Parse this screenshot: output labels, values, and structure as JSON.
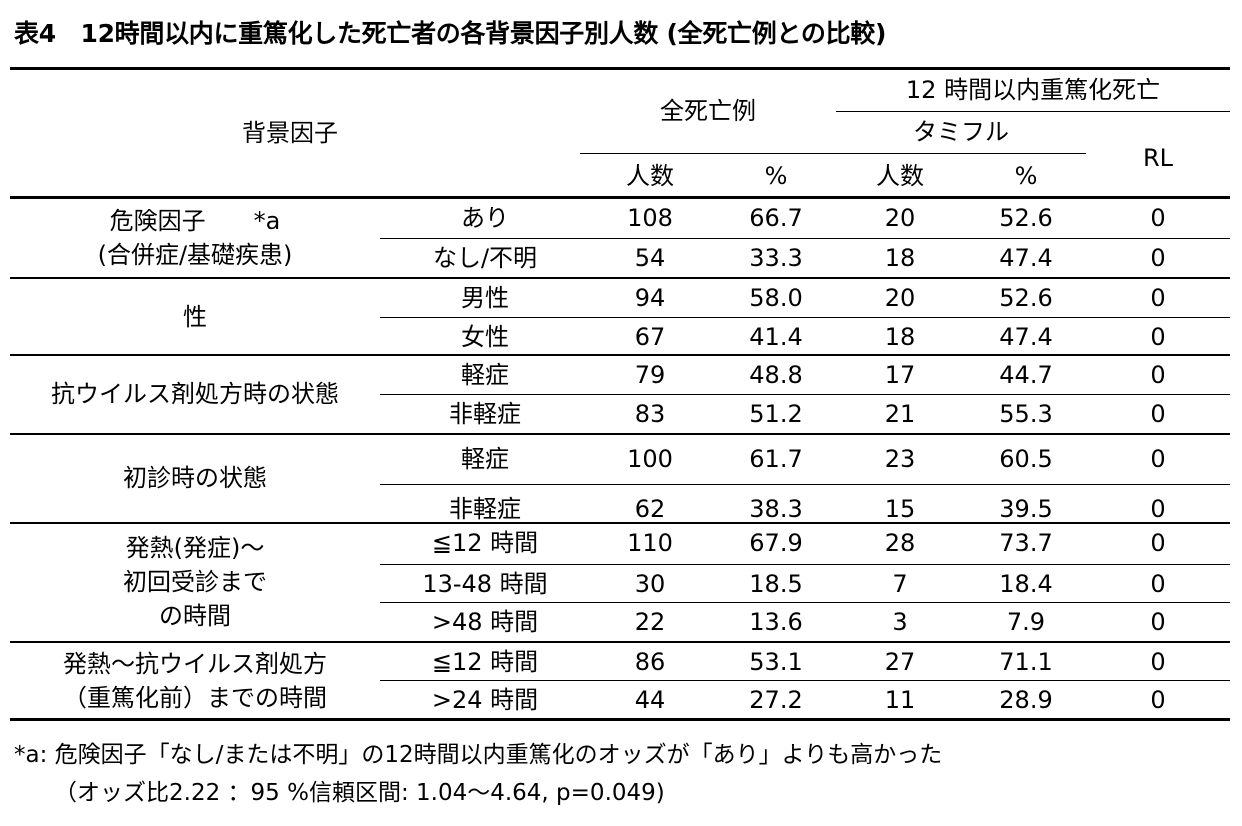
{
  "title": "表4　12時間以内に重篤化した死亡者の各背景因子別人数 (全死亡例との比較)",
  "header": {
    "factor": "背景因子",
    "all_deaths": "全死亡例",
    "within12h": "12 時間以内重篤化死亡",
    "tamiflu": "タミフル",
    "rl": "RL",
    "count": "人数",
    "pct": "%"
  },
  "groups": [
    {
      "factor_lines": [
        "危険因子　　*a",
        "(合併症/基礎疾患)"
      ],
      "rows": [
        {
          "level": "あり",
          "all_n": "108",
          "all_pct": "66.7",
          "tami_n": "20",
          "tami_pct": "52.6",
          "rl": "0"
        },
        {
          "level": "なし/不明",
          "all_n": "54",
          "all_pct": "33.3",
          "tami_n": "18",
          "tami_pct": "47.4",
          "rl": "0"
        }
      ]
    },
    {
      "factor_lines": [
        "性"
      ],
      "rows": [
        {
          "level": "男性",
          "all_n": "94",
          "all_pct": "58.0",
          "tami_n": "20",
          "tami_pct": "52.6",
          "rl": "0"
        },
        {
          "level": "女性",
          "all_n": "67",
          "all_pct": "41.4",
          "tami_n": "18",
          "tami_pct": "47.4",
          "rl": "0"
        }
      ]
    },
    {
      "factor_lines": [
        "抗ウイルス剤処方時の状態"
      ],
      "rows": [
        {
          "level": "軽症",
          "all_n": "79",
          "all_pct": "48.8",
          "tami_n": "17",
          "tami_pct": "44.7",
          "rl": "0"
        },
        {
          "level": "非軽症",
          "all_n": "83",
          "all_pct": "51.2",
          "tami_n": "21",
          "tami_pct": "55.3",
          "rl": "0"
        }
      ]
    },
    {
      "factor_lines": [
        "初診時の状態"
      ],
      "rows": [
        {
          "level": "軽症",
          "all_n": "100",
          "all_pct": "61.7",
          "tami_n": "23",
          "tami_pct": "60.5",
          "rl": "0"
        },
        {
          "level": "非軽症",
          "all_n": "62",
          "all_pct": "38.3",
          "tami_n": "15",
          "tami_pct": "39.5",
          "rl": "0"
        }
      ]
    },
    {
      "factor_lines": [
        "発熱(発症)～",
        "初回受診まで",
        "の時間"
      ],
      "rows": [
        {
          "level": "≦12 時間",
          "all_n": "110",
          "all_pct": "67.9",
          "tami_n": "28",
          "tami_pct": "73.7",
          "rl": "0"
        },
        {
          "level": "13-48 時間",
          "all_n": "30",
          "all_pct": "18.5",
          "tami_n": "7",
          "tami_pct": "18.4",
          "rl": "0"
        },
        {
          "level": ">48 時間",
          "all_n": "22",
          "all_pct": "13.6",
          "tami_n": "3",
          "tami_pct": "7.9",
          "rl": "0"
        }
      ]
    },
    {
      "factor_lines": [
        "発熱～抗ウイルス剤処方",
        "（重篤化前）までの時間"
      ],
      "rows": [
        {
          "level": "≦12 時間",
          "all_n": "86",
          "all_pct": "53.1",
          "tami_n": "27",
          "tami_pct": "71.1",
          "rl": "0"
        },
        {
          "level": ">24 時間",
          "all_n": "44",
          "all_pct": "27.2",
          "tami_n": "11",
          "tami_pct": "28.9",
          "rl": "0"
        }
      ]
    }
  ],
  "footnote": {
    "line1": "*a: 危険因子「なし/または不明」の12時間以内重篤化のオッズが「あり」よりも高かった",
    "line2": "（オッズ比2.22 ：95 %信頼区間: 1.04～4.64, p=0.049)"
  }
}
